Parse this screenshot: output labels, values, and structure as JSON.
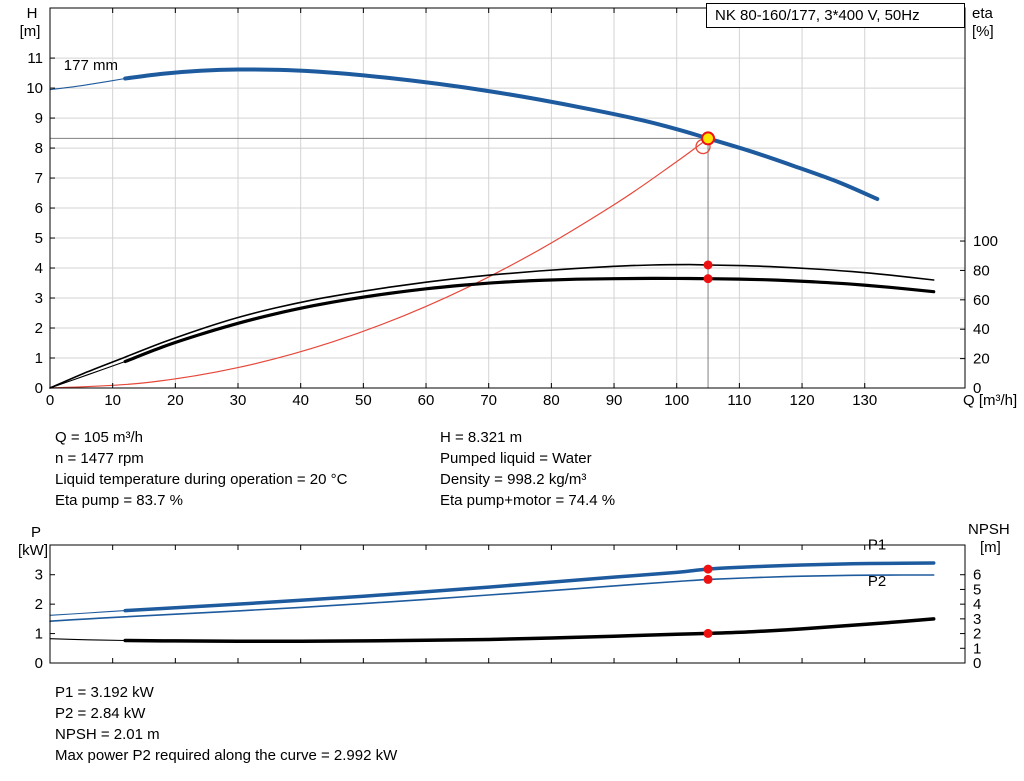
{
  "title_box": {
    "label": "NK 80-160/177, 3*400 V, 50Hz"
  },
  "info_top": {
    "left": [
      "Q = 105 m³/h",
      "n = 1477 rpm",
      "Liquid temperature during operation = 20 °C",
      "Eta pump = 83.7 %"
    ],
    "right": [
      "H = 8.321 m",
      "Pumped liquid = Water",
      "Density = 998.2 kg/m³",
      "Eta pump+motor = 74.4 %"
    ]
  },
  "info_bottom": {
    "lines": [
      "P1 = 3.192 kW",
      "P2 = 2.84 kW",
      "NPSH = 2.01 m",
      "Max power P2 required along the curve = 2.992 kW"
    ]
  },
  "colors": {
    "curve_blue": "#1e5b9e",
    "curve_red": "#e6493b",
    "dot_red": "#ee1111",
    "duty_yellow": "#ffe400",
    "grid_gray": "#d3d3d3",
    "guide_gray": "#808080"
  },
  "chart_data": [
    {
      "type": "line",
      "title": "NK 80-160/177, 3*400 V, 50Hz",
      "xlabel": "Q [m³/h]",
      "ylabel_left": [
        "H",
        "[m]"
      ],
      "ylabel_right": [
        "eta",
        "[%]"
      ],
      "xlim": [
        0,
        146
      ],
      "ylim_left": [
        0,
        12.67
      ],
      "right_axis_factor": 0.049,
      "x_ticks": [
        0,
        10,
        20,
        30,
        40,
        50,
        60,
        70,
        80,
        90,
        100,
        110,
        120,
        130
      ],
      "y_ticks_left": [
        0,
        1,
        2,
        3,
        4,
        5,
        6,
        7,
        8,
        9,
        10,
        11
      ],
      "y_ticks_right": [
        0,
        20,
        40,
        60,
        80,
        100
      ],
      "grid": true,
      "guides": [
        {
          "dir": "h",
          "v": 8.321,
          "from": 0,
          "to": 105
        },
        {
          "dir": "v",
          "v": 105,
          "from": 0,
          "to": 8.321
        }
      ],
      "series": [
        {
          "name": "system-curve",
          "axis": "left",
          "color": "#e6493b",
          "width": 1.2,
          "points": [
            [
              0,
              0
            ],
            [
              15,
              0.17
            ],
            [
              30,
              0.68
            ],
            [
              45,
              1.53
            ],
            [
              60,
              2.72
            ],
            [
              75,
              4.25
            ],
            [
              90,
              6.11
            ],
            [
              100,
              7.55
            ],
            [
              105,
              8.321
            ]
          ]
        },
        {
          "name": "eta-pump-curve",
          "axis": "right",
          "color": "#000000",
          "width": 1.6,
          "points": [
            [
              0,
              0
            ],
            [
              6,
              11
            ],
            [
              12,
              21
            ],
            [
              18,
              31
            ],
            [
              24,
              40
            ],
            [
              30,
              48
            ],
            [
              36,
              54.5
            ],
            [
              42,
              60
            ],
            [
              48,
              64.5
            ],
            [
              54,
              68.5
            ],
            [
              60,
              72
            ],
            [
              66,
              75
            ],
            [
              72,
              77.5
            ],
            [
              78,
              79.6
            ],
            [
              84,
              81.4
            ],
            [
              90,
              82.8
            ],
            [
              96,
              83.7
            ],
            [
              102,
              84
            ],
            [
              105,
              83.7
            ],
            [
              110,
              83.3
            ],
            [
              116,
              82.4
            ],
            [
              122,
              81
            ],
            [
              128,
              79.2
            ],
            [
              134,
              76.8
            ],
            [
              141,
              73.5
            ]
          ]
        },
        {
          "name": "eta-pump-motor-curve",
          "axis": "right",
          "color": "#000000",
          "width": 3.2,
          "lead": [
            [
              0,
              0
            ],
            [
              6,
              9
            ],
            [
              12,
              18
            ]
          ],
          "points": [
            [
              12,
              18
            ],
            [
              18,
              28
            ],
            [
              24,
              36.5
            ],
            [
              30,
              44
            ],
            [
              36,
              50.5
            ],
            [
              42,
              56
            ],
            [
              48,
              60.5
            ],
            [
              54,
              64.3
            ],
            [
              60,
              67.5
            ],
            [
              66,
              70
            ],
            [
              72,
              71.9
            ],
            [
              78,
              73.2
            ],
            [
              84,
              74
            ],
            [
              90,
              74.4
            ],
            [
              96,
              74.6
            ],
            [
              102,
              74.5
            ],
            [
              105,
              74.4
            ],
            [
              110,
              74.1
            ],
            [
              116,
              73.4
            ],
            [
              122,
              72.2
            ],
            [
              128,
              70.6
            ],
            [
              134,
              68.5
            ],
            [
              141,
              65.5
            ]
          ]
        },
        {
          "name": "head-curve-177mm",
          "label": "177 mm",
          "axis": "left",
          "color": "#1e5b9e",
          "width": 4,
          "lead": [
            [
              0,
              9.95
            ],
            [
              4,
              10.05
            ],
            [
              8,
              10.18
            ],
            [
              12,
              10.32
            ]
          ],
          "points": [
            [
              12,
              10.32
            ],
            [
              18,
              10.48
            ],
            [
              24,
              10.58
            ],
            [
              30,
              10.62
            ],
            [
              38,
              10.6
            ],
            [
              46,
              10.5
            ],
            [
              54,
              10.34
            ],
            [
              62,
              10.14
            ],
            [
              70,
              9.9
            ],
            [
              78,
              9.62
            ],
            [
              86,
              9.3
            ],
            [
              94,
              8.95
            ],
            [
              100,
              8.63
            ],
            [
              105,
              8.321
            ],
            [
              112,
              7.88
            ],
            [
              119,
              7.38
            ],
            [
              126,
              6.85
            ],
            [
              132,
              6.3
            ]
          ]
        }
      ],
      "markers": [
        {
          "name": "duty-point-system-circle",
          "shape": "open-circle",
          "x": 104.2,
          "y": 8.05,
          "axis": "left",
          "r": 7,
          "stroke": "#e6493b"
        },
        {
          "name": "duty-point",
          "shape": "duty",
          "x": 105,
          "y": 8.321,
          "axis": "left",
          "r": 6,
          "fill": "#ffe400",
          "stroke": "#ee1111"
        },
        {
          "name": "eta-pump-point",
          "shape": "dot",
          "x": 105,
          "y": 83.7,
          "axis": "right",
          "r": 4.5,
          "fill": "#ee1111"
        },
        {
          "name": "eta-pump-motor-point",
          "shape": "dot",
          "x": 105,
          "y": 74.4,
          "axis": "right",
          "r": 4.5,
          "fill": "#ee1111"
        }
      ],
      "curve_labels": [
        {
          "text": "177 mm",
          "x": 2.2,
          "y": 10.6,
          "color": "#000000"
        }
      ]
    },
    {
      "type": "line",
      "title": "",
      "xlabel": "",
      "ylabel_left": [
        "P",
        "[kW]"
      ],
      "ylabel_right": [
        "NPSH",
        "[m]"
      ],
      "xlim": [
        0,
        146
      ],
      "ylim_left": [
        0,
        4.01
      ],
      "right_axis_factor": 0.5,
      "x_ticks": [
        0,
        10,
        20,
        30,
        40,
        50,
        60,
        70,
        80,
        90,
        100,
        110,
        120,
        130
      ],
      "y_ticks_left": [
        0,
        1,
        2,
        3
      ],
      "y_ticks_right": [
        0,
        1,
        2,
        3,
        4,
        5,
        6
      ],
      "grid": false,
      "guides": [],
      "series": [
        {
          "name": "p2-curve",
          "label": "P2",
          "axis": "left",
          "color": "#1e5b9e",
          "width": 1.6,
          "points": [
            [
              0,
              1.42
            ],
            [
              6,
              1.5
            ],
            [
              12,
              1.57
            ],
            [
              20,
              1.66
            ],
            [
              30,
              1.77
            ],
            [
              40,
              1.89
            ],
            [
              50,
              2.02
            ],
            [
              60,
              2.16
            ],
            [
              70,
              2.31
            ],
            [
              80,
              2.46
            ],
            [
              90,
              2.62
            ],
            [
              100,
              2.77
            ],
            [
              105,
              2.84
            ],
            [
              112,
              2.9
            ],
            [
              120,
              2.95
            ],
            [
              128,
              2.98
            ],
            [
              136,
              2.99
            ],
            [
              141,
              2.992
            ]
          ]
        },
        {
          "name": "npsh-curve",
          "axis": "right",
          "color": "#000000",
          "width": 3.5,
          "lead": [
            [
              0,
              1.65
            ],
            [
              6,
              1.58
            ],
            [
              12,
              1.53
            ]
          ],
          "points": [
            [
              12,
              1.53
            ],
            [
              20,
              1.5
            ],
            [
              30,
              1.48
            ],
            [
              40,
              1.48
            ],
            [
              50,
              1.5
            ],
            [
              60,
              1.54
            ],
            [
              70,
              1.6
            ],
            [
              80,
              1.7
            ],
            [
              90,
              1.82
            ],
            [
              100,
              1.95
            ],
            [
              105,
              2.01
            ],
            [
              112,
              2.12
            ],
            [
              120,
              2.32
            ],
            [
              128,
              2.56
            ],
            [
              136,
              2.82
            ],
            [
              141,
              3.0
            ]
          ]
        },
        {
          "name": "p1-curve",
          "label": "P1",
          "axis": "left",
          "color": "#1e5b9e",
          "width": 3.5,
          "lead": [
            [
              0,
              1.62
            ],
            [
              6,
              1.7
            ],
            [
              12,
              1.78
            ]
          ],
          "points": [
            [
              12,
              1.78
            ],
            [
              20,
              1.88
            ],
            [
              30,
              2.0
            ],
            [
              40,
              2.13
            ],
            [
              50,
              2.27
            ],
            [
              60,
              2.42
            ],
            [
              70,
              2.58
            ],
            [
              80,
              2.75
            ],
            [
              90,
              2.92
            ],
            [
              100,
              3.08
            ],
            [
              105,
              3.192
            ],
            [
              112,
              3.27
            ],
            [
              120,
              3.33
            ],
            [
              128,
              3.37
            ],
            [
              136,
              3.39
            ],
            [
              141,
              3.4
            ]
          ]
        }
      ],
      "markers": [
        {
          "name": "p1-point",
          "shape": "dot",
          "x": 105,
          "y": 3.192,
          "axis": "left",
          "r": 4.5,
          "fill": "#ee1111"
        },
        {
          "name": "p2-point",
          "shape": "dot",
          "x": 105,
          "y": 2.84,
          "axis": "left",
          "r": 4.5,
          "fill": "#ee1111"
        },
        {
          "name": "npsh-point",
          "shape": "dot",
          "x": 105,
          "y": 2.01,
          "axis": "right",
          "r": 4.5,
          "fill": "#ee1111"
        }
      ],
      "curve_labels": [
        {
          "text": "P1",
          "x": 130.5,
          "y": 3.85,
          "color": "#1e5b9e"
        },
        {
          "text": "P2",
          "x": 130.5,
          "y": 2.62,
          "color": "#1e5b9e"
        }
      ]
    }
  ]
}
